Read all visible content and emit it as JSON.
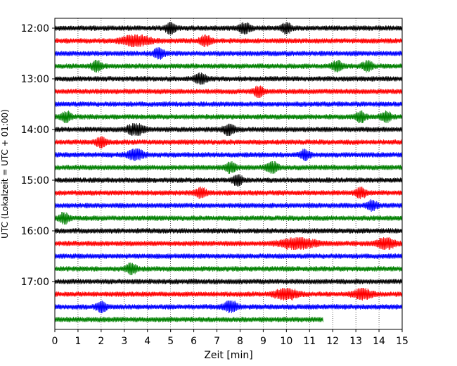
{
  "chart_data": {
    "type": "line",
    "title": "",
    "xlabel": "Zeit  [min]",
    "ylabel": "UTC (Lokalzeit = UTC + 01:00)",
    "xlim": [
      0,
      15
    ],
    "x_ticks": [
      0,
      1,
      2,
      3,
      4,
      5,
      6,
      7,
      8,
      9,
      10,
      11,
      12,
      13,
      14,
      15
    ],
    "grid": "vertical dotted",
    "legend": "none",
    "traces_start": "12:00",
    "trace_interval_min": 15,
    "trace_colors": [
      "#000000",
      "#ff0000",
      "#0000ff",
      "#008000"
    ],
    "y_ticks": [
      {
        "label": "12:00",
        "trace": 0
      },
      {
        "label": "13:00",
        "trace": 4
      },
      {
        "label": "14:00",
        "trace": 8
      },
      {
        "label": "15:00",
        "trace": 12
      },
      {
        "label": "16:00",
        "trace": 16
      },
      {
        "label": "17:00",
        "trace": 20
      }
    ],
    "traces": [
      {
        "start": "12:00",
        "end_min": 15,
        "bursts": [
          [
            8.2,
            0.5
          ],
          [
            10.0,
            0.4
          ],
          [
            5.0,
            0.4
          ]
        ]
      },
      {
        "start": "12:15",
        "end_min": 15,
        "bursts": [
          [
            3.5,
            1.2
          ],
          [
            6.5,
            0.5
          ]
        ]
      },
      {
        "start": "12:30",
        "end_min": 15,
        "bursts": [
          [
            4.5,
            0.4
          ]
        ]
      },
      {
        "start": "12:45",
        "end_min": 15,
        "bursts": [
          [
            1.8,
            0.3
          ],
          [
            12.2,
            0.2
          ],
          [
            13.5,
            0.2
          ]
        ]
      },
      {
        "start": "13:00",
        "end_min": 15,
        "bursts": [
          [
            6.3,
            0.5
          ]
        ]
      },
      {
        "start": "13:15",
        "end_min": 15,
        "bursts": [
          [
            8.8,
            0.3
          ]
        ]
      },
      {
        "start": "13:30",
        "end_min": 15,
        "bursts": []
      },
      {
        "start": "13:45",
        "end_min": 15,
        "bursts": [
          [
            0.5,
            0.4
          ],
          [
            13.2,
            0.3
          ],
          [
            14.3,
            0.3
          ]
        ]
      },
      {
        "start": "14:00",
        "end_min": 15,
        "bursts": [
          [
            3.5,
            0.8
          ],
          [
            7.5,
            0.5
          ]
        ]
      },
      {
        "start": "14:15",
        "end_min": 15,
        "bursts": [
          [
            2.0,
            0.3
          ]
        ]
      },
      {
        "start": "14:30",
        "end_min": 15,
        "bursts": [
          [
            3.5,
            0.7
          ],
          [
            10.8,
            0.3
          ]
        ]
      },
      {
        "start": "14:45",
        "end_min": 15,
        "bursts": [
          [
            7.6,
            0.4
          ],
          [
            9.4,
            0.5
          ]
        ]
      },
      {
        "start": "15:00",
        "end_min": 15,
        "bursts": [
          [
            7.9,
            0.3
          ]
        ]
      },
      {
        "start": "15:15",
        "end_min": 15,
        "bursts": [
          [
            6.3,
            0.3
          ],
          [
            13.2,
            0.3
          ]
        ]
      },
      {
        "start": "15:30",
        "end_min": 15,
        "bursts": [
          [
            13.7,
            0.2
          ]
        ]
      },
      {
        "start": "15:45",
        "end_min": 15,
        "bursts": [
          [
            0.4,
            0.4
          ]
        ]
      },
      {
        "start": "16:00",
        "end_min": 15,
        "bursts": []
      },
      {
        "start": "16:15",
        "end_min": 15,
        "bursts": [
          [
            10.5,
            1.5
          ],
          [
            14.3,
            0.8
          ]
        ]
      },
      {
        "start": "16:30",
        "end_min": 15,
        "bursts": []
      },
      {
        "start": "16:45",
        "end_min": 15,
        "bursts": [
          [
            3.3,
            0.4
          ]
        ]
      },
      {
        "start": "17:00",
        "end_min": 15,
        "bursts": []
      },
      {
        "start": "17:15",
        "end_min": 15,
        "bursts": [
          [
            10.0,
            1.0
          ],
          [
            13.3,
            0.8
          ]
        ]
      },
      {
        "start": "17:30",
        "end_min": 15,
        "bursts": [
          [
            2.0,
            0.3
          ],
          [
            7.6,
            0.6
          ]
        ]
      },
      {
        "start": "17:45",
        "end_min": 11.6,
        "bursts": []
      }
    ]
  }
}
